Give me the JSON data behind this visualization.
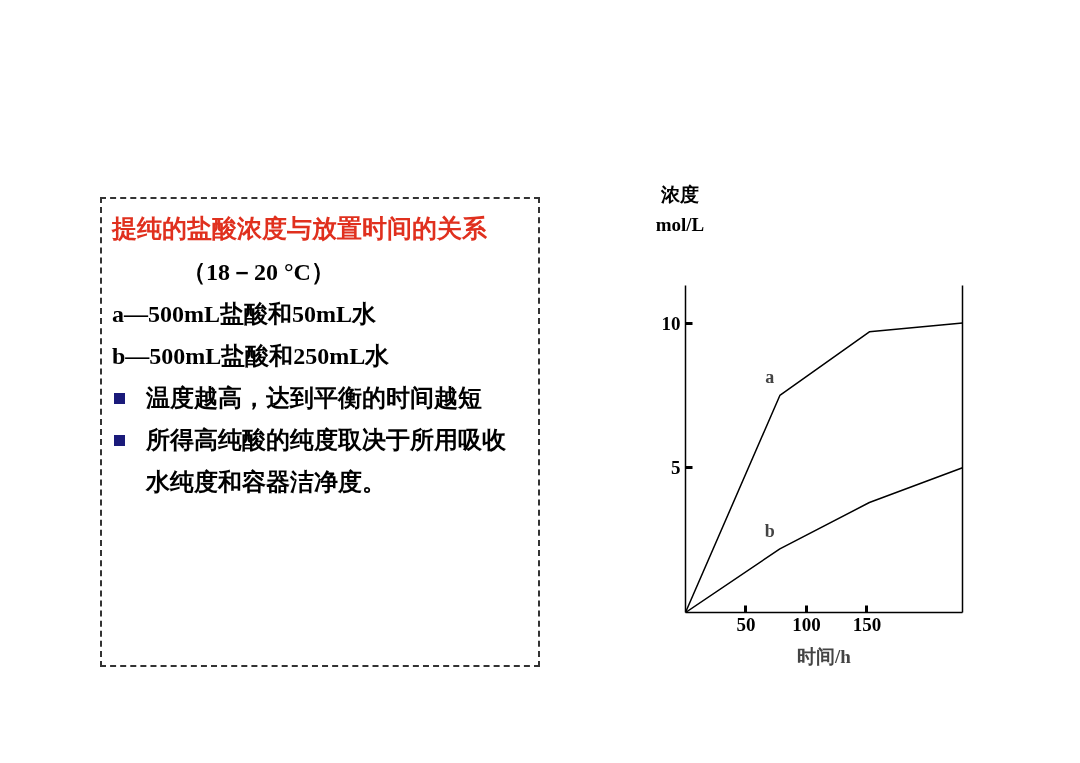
{
  "chart_data": {
    "type": "line",
    "title": "提纯的盐酸浓度与放置时间的关系",
    "xlabel": "时间/h",
    "ylabel": "浓度\nmol/L",
    "x": [
      0,
      78,
      152,
      229
    ],
    "series": [
      {
        "name": "a",
        "color": "#000000",
        "values": [
          0,
          7.5,
          9.7,
          10.0
        ]
      },
      {
        "name": "b",
        "color": "#000000",
        "values": [
          0,
          2.2,
          3.8,
          5.0
        ]
      }
    ],
    "xlim": [
      0,
      229
    ],
    "ylim": [
      0,
      11.3
    ],
    "xticks": [
      50,
      100,
      150
    ],
    "yticks": [
      5,
      10
    ],
    "grid": false,
    "marker": "none",
    "line_style": "solid",
    "annotations": [
      "（18－20 °C）",
      "a—500mL盐酸和50mL水",
      "b—500mL盐酸和250mL水",
      "温度越高，达到平衡的时间越短",
      "所得高纯酸的纯度取决于所用吸收水纯度和容器洁净度。"
    ]
  }
}
